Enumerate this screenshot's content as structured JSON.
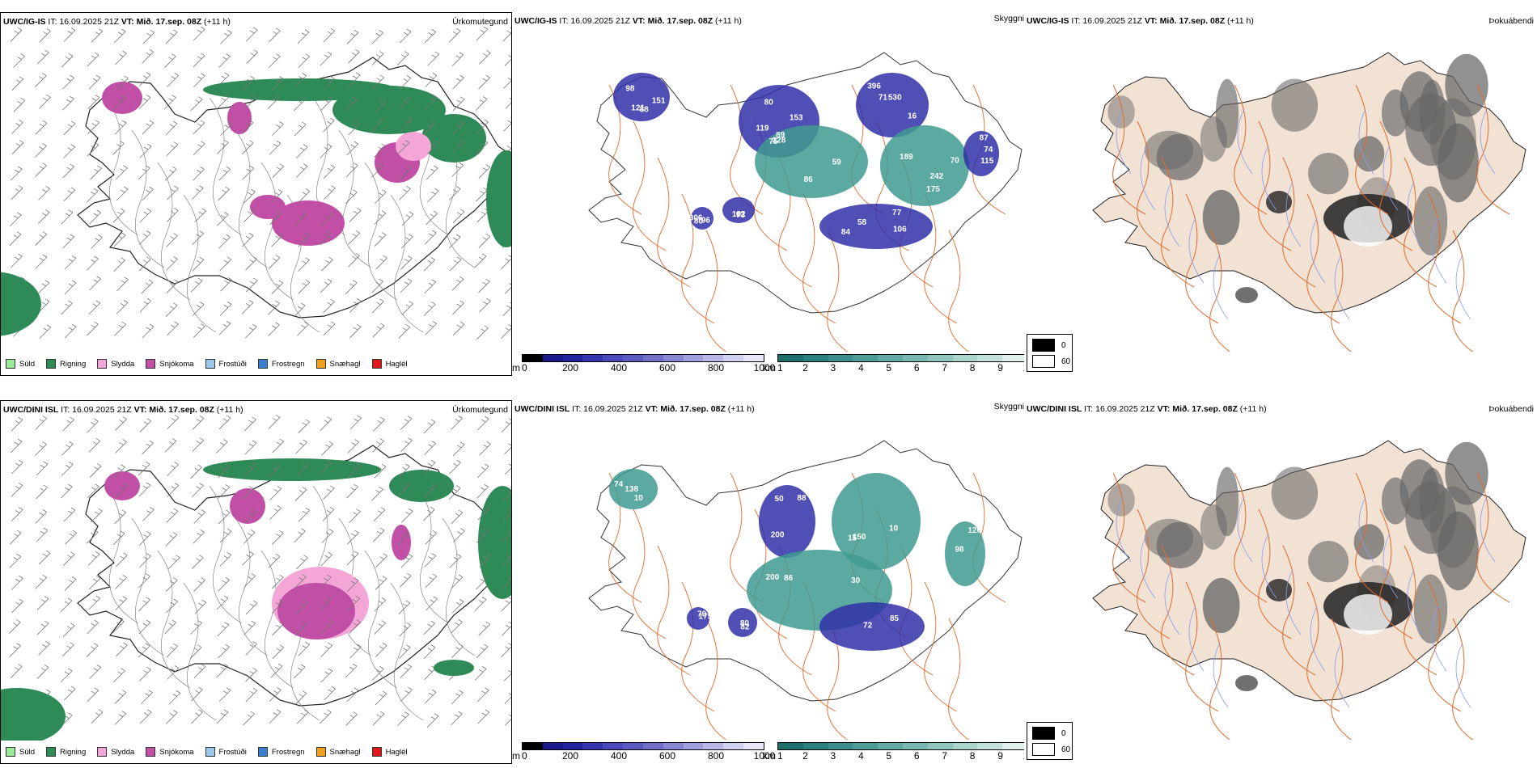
{
  "rows": [
    {
      "model": "UWC/IG-IS",
      "precip": {
        "title": "Úrkomutegund",
        "header_it": "IT: 16.09.2025 21Z",
        "header_vt_label": "VT:",
        "header_vt_value": "Mið. 17.sep. 08Z",
        "header_lead": "(+11 h)"
      },
      "vis": {
        "title": "Skyggni",
        "header_it": "IT: 16.09.2025 21Z",
        "header_vt_label": "VT:",
        "header_vt_value": "Mið. 17.sep. 08Z",
        "header_lead": "(+11 h)",
        "labels": [
          "121",
          "89",
          "530",
          "75",
          "70",
          "84",
          "102",
          "306",
          "74",
          "98",
          "119",
          "16",
          "86",
          "175",
          "77",
          "73",
          "96",
          "115",
          "151",
          "153",
          "396",
          "59",
          "189",
          "58",
          "62",
          "80",
          "87",
          "88",
          "80",
          "71",
          "228",
          "242",
          "106"
        ]
      },
      "fog": {
        "title": "Þokuábendi",
        "header_it": "IT: 16.09.2025 21Z",
        "header_vt_label": "VT:",
        "header_vt_value": "Mið. 17.sep. 08Z",
        "header_lead": "(+11 h)"
      }
    },
    {
      "model": "UWC/DINI ISL",
      "precip": {
        "title": "Úrkomutegund",
        "header_it": "IT: 16.09.2025 21Z",
        "header_vt_label": "VT:",
        "header_vt_value": "Mið. 17.sep. 08Z",
        "header_lead": "(+11 h)"
      },
      "vis": {
        "title": "Skyggni",
        "header_it": "IT: 16.09.2025 21Z",
        "header_vt_label": "VT:",
        "header_vt_value": "Mið. 17.sep. 08Z",
        "header_lead": "(+11 h)",
        "labels": [
          "10",
          "50",
          "150",
          "86",
          "85",
          "82",
          "175",
          "98",
          "138",
          "200",
          "15",
          "200",
          "72",
          "80",
          "70",
          "126",
          "74",
          "88",
          "10",
          "30"
        ]
      },
      "fog": {
        "title": "Þokuábendi",
        "header_it": "IT: 16.09.2025 21Z",
        "header_vt_label": "VT:",
        "header_vt_value": "Mið. 17.sep. 08Z",
        "header_lead": "(+11 h)"
      }
    }
  ],
  "precip_legend": [
    {
      "label": "Súld",
      "color": "#9be89b"
    },
    {
      "label": "Rigning",
      "color": "#2e8b57"
    },
    {
      "label": "Slydda",
      "color": "#f4a6d7"
    },
    {
      "label": "Snjókoma",
      "color": "#c14fa5"
    },
    {
      "label": "Frostúði",
      "color": "#9cc8f0"
    },
    {
      "label": "Frostregn",
      "color": "#3a7fd0"
    },
    {
      "label": "Snæhagl",
      "color": "#f0a020"
    },
    {
      "label": "Haglél",
      "color": "#e01818"
    }
  ],
  "vis_scale_m": {
    "unit": "m",
    "ticks": [
      "0",
      "200",
      "400",
      "600",
      "800",
      "1000"
    ],
    "colors": [
      "#000000",
      "#1a1a8a",
      "#2323a0",
      "#3535b0",
      "#4a4ab8",
      "#5c5cc0",
      "#7070c8",
      "#8888d2",
      "#a0a0dc",
      "#b8b8e6",
      "#d0d0f0",
      "#e6e6f8"
    ]
  },
  "vis_scale_km": {
    "unit": "km",
    "ticks": [
      "1",
      "2",
      "3",
      "4",
      "5",
      "6",
      "7",
      "8",
      "9",
      "10"
    ],
    "colors": [
      "#1e6e6e",
      "#2c7f7f",
      "#3c8e8c",
      "#4e9c98",
      "#62aaa5",
      "#78b8b2",
      "#90c6c0",
      "#aad4ce",
      "#c4e2dc",
      "#e0f0ec"
    ]
  },
  "fog_scale": {
    "items": [
      {
        "value": "0",
        "color": "#000000"
      },
      {
        "value": "60",
        "color": "#ffffff"
      }
    ]
  },
  "colors": {
    "rain": "#2e8b57",
    "snow": "#c14fa5",
    "sleet": "#f4a6d7",
    "fog_land": "#f1e2d3",
    "roads": "#e36a2c",
    "rivers": "#8a9cf0",
    "vis_low": "#3030a8",
    "vis_mid": "#3f9a90"
  }
}
